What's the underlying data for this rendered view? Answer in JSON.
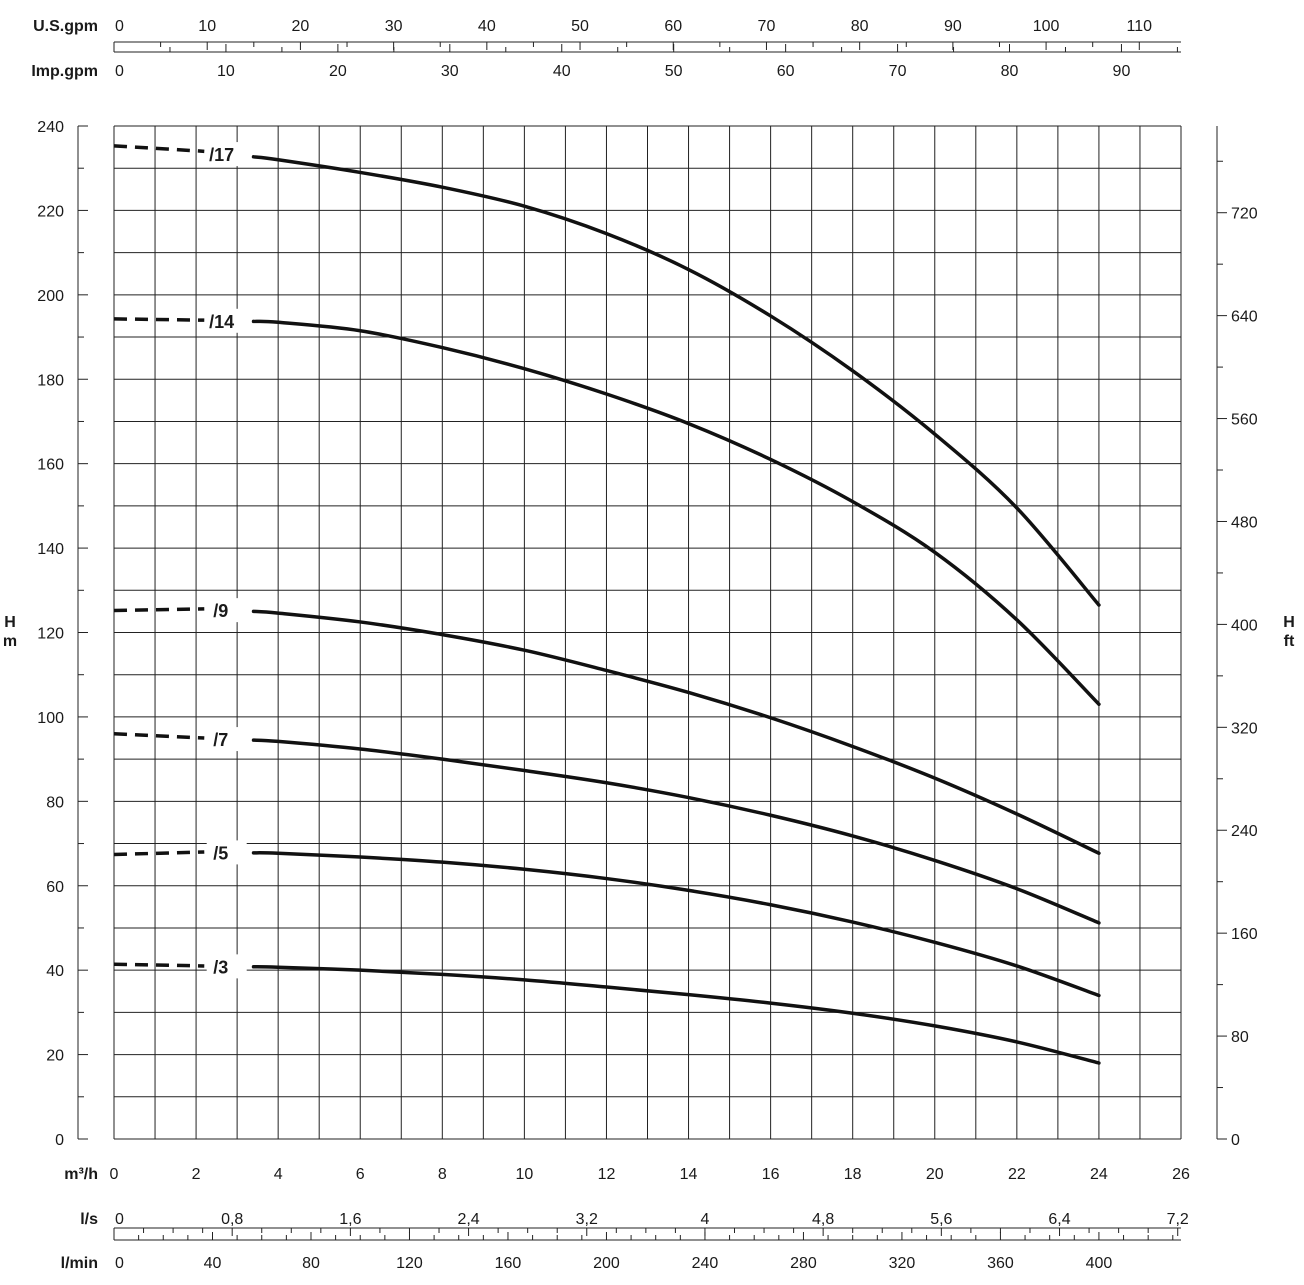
{
  "chart_data": {
    "type": "line",
    "title": "",
    "xlabel": "m³/h",
    "xlim": [
      0,
      26
    ],
    "ylabel_left": "H m",
    "ylim": [
      0,
      240
    ],
    "ylabel_right": "H ft",
    "x_ticks": [
      "0",
      "2",
      "4",
      "6",
      "8",
      "10",
      "12",
      "14",
      "16",
      "18",
      "20",
      "22",
      "24",
      "26"
    ],
    "y_ticks": [
      "0",
      "20",
      "40",
      "60",
      "80",
      "100",
      "120",
      "140",
      "160",
      "180",
      "200",
      "220",
      "240"
    ],
    "grid": true,
    "secondary_axes": {
      "us_gpm": {
        "label": "U.S.gpm",
        "ticks": [
          "0",
          "10",
          "20",
          "30",
          "40",
          "50",
          "60",
          "70",
          "80",
          "90",
          "100",
          "110"
        ]
      },
      "imp_gpm": {
        "label": "Imp.gpm",
        "ticks": [
          "0",
          "10",
          "20",
          "30",
          "40",
          "50",
          "60",
          "70",
          "80",
          "90"
        ]
      },
      "ls": {
        "label": "l/s",
        "ticks": [
          "0",
          "0,8",
          "1,6",
          "2,4",
          "3,2",
          "4",
          "4,8",
          "5,6",
          "6,4",
          "7,2"
        ]
      },
      "lmin": {
        "label": "l/min",
        "ticks": [
          "0",
          "40",
          "80",
          "120",
          "160",
          "200",
          "240",
          "280",
          "320",
          "360",
          "400"
        ]
      },
      "ft": {
        "label": "H ft",
        "ticks": [
          "0",
          "80",
          "160",
          "240",
          "320",
          "400",
          "480",
          "560",
          "640",
          "720"
        ]
      }
    },
    "series": [
      {
        "name": "/17",
        "dashed": [
          [
            0,
            235.3
          ],
          [
            2.2,
            234.0
          ]
        ],
        "x": [
          3.4,
          4,
          6,
          8,
          10,
          12,
          14,
          16,
          18,
          20,
          22,
          24
        ],
        "y": [
          232.7,
          232.0,
          229.0,
          225.5,
          221.0,
          214.5,
          206.0,
          195.0,
          182.0,
          167.0,
          149.5,
          126.5
        ]
      },
      {
        "name": "/14",
        "dashed": [
          [
            0,
            194.3
          ],
          [
            2.2,
            194.0
          ]
        ],
        "x": [
          3.4,
          4,
          6,
          8,
          10,
          12,
          14,
          16,
          18,
          20,
          22,
          24
        ],
        "y": [
          193.7,
          193.5,
          191.5,
          187.5,
          182.5,
          176.5,
          169.5,
          161.0,
          151.0,
          139.0,
          123.0,
          103.0
        ]
      },
      {
        "name": "/9",
        "dashed": [
          [
            0,
            125.2
          ],
          [
            2.2,
            125.6
          ]
        ],
        "x": [
          3.4,
          4,
          6,
          8,
          10,
          12,
          14,
          16,
          18,
          20,
          22,
          24
        ],
        "y": [
          125.0,
          124.6,
          122.5,
          119.5,
          115.8,
          111.0,
          105.8,
          99.8,
          93.0,
          85.5,
          77.0,
          67.7
        ]
      },
      {
        "name": "/7",
        "dashed": [
          [
            0,
            96.0
          ],
          [
            2.2,
            95.0
          ]
        ],
        "x": [
          3.4,
          4,
          6,
          8,
          10,
          12,
          14,
          16,
          18,
          20,
          22,
          24
        ],
        "y": [
          94.5,
          94.2,
          92.4,
          90.0,
          87.3,
          84.4,
          80.9,
          76.7,
          71.8,
          66.0,
          59.3,
          51.2
        ]
      },
      {
        "name": "/5",
        "dashed": [
          [
            0,
            67.4
          ],
          [
            2.2,
            68.0
          ]
        ],
        "x": [
          3.4,
          4,
          6,
          8,
          10,
          12,
          14,
          16,
          18,
          20,
          22,
          24
        ],
        "y": [
          67.8,
          67.7,
          66.8,
          65.6,
          63.9,
          61.7,
          58.9,
          55.5,
          51.4,
          46.6,
          41.0,
          34.0
        ]
      },
      {
        "name": "/3",
        "dashed": [
          [
            0,
            41.4
          ],
          [
            2.2,
            41.0
          ]
        ],
        "x": [
          3.4,
          4,
          6,
          8,
          10,
          12,
          14,
          16,
          18,
          20,
          22,
          24
        ],
        "y": [
          40.8,
          40.7,
          40.0,
          39.0,
          37.7,
          36.0,
          34.2,
          32.2,
          29.8,
          26.8,
          23.0,
          18.0
        ]
      }
    ]
  }
}
